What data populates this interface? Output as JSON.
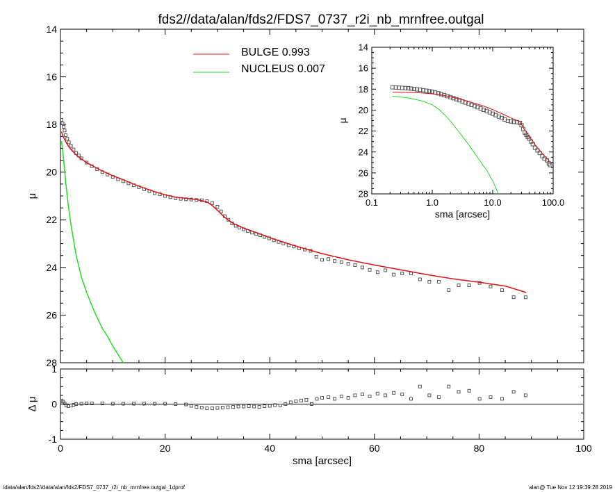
{
  "title": "fds2//data/alan/fds2/FDS7_0737_r2i_nb_mrnfree.outgal",
  "footer_left": "/data/alan/fds2//data/alan/fds2/FDS7_0737_r2i_nb_mrnfree.outgal_1dprof",
  "footer_right": "alan@  Tue Nov 12 19:39:28 2019",
  "legend": [
    {
      "label": "BULGE  0.993",
      "color": "#dd1111"
    },
    {
      "label": "NUCLEUS  0.007",
      "color": "#22dd22"
    }
  ],
  "chart_data": [
    {
      "type": "line",
      "panel": "main",
      "xlabel": "",
      "ylabel": "μ",
      "xlim": [
        0,
        100
      ],
      "ylim": [
        28,
        14
      ],
      "y_reversed": true,
      "x_ticks": [],
      "y_ticks": [
        14,
        16,
        18,
        20,
        22,
        24,
        26,
        28
      ],
      "series": [
        {
          "name": "data",
          "kind": "square-markers",
          "color": "#555555",
          "x": [
            0.2,
            0.4,
            0.6,
            0.8,
            1.0,
            1.3,
            1.6,
            2.0,
            2.5,
            3.0,
            3.5,
            4.0,
            5.0,
            6.0,
            7.0,
            8.0,
            9.0,
            10.0,
            11.0,
            12.0,
            13.0,
            14.0,
            15.0,
            16.0,
            17.0,
            18.0,
            19.0,
            20.0,
            21.0,
            22.0,
            23.0,
            24.0,
            25.0,
            26.0,
            27.0,
            28.0,
            29.0,
            30.0,
            30.7,
            31.4,
            32.1,
            32.8,
            33.5,
            34.2,
            35.0,
            35.8,
            36.6,
            37.4,
            38.2,
            39.0,
            39.9,
            40.8,
            41.7,
            42.6,
            43.6,
            44.6,
            45.6,
            46.7,
            47.8,
            48.9,
            50.0,
            51.2,
            52.4,
            53.7,
            55.0,
            56.3,
            57.7,
            59.1,
            60.6,
            62.1,
            63.7,
            65.3,
            67.0,
            68.7,
            70.5,
            72.3,
            74.2,
            76.1,
            78.1,
            80.1,
            82.2,
            84.4,
            86.6,
            88.9
          ],
          "y": [
            17.8,
            17.95,
            18.1,
            18.25,
            18.45,
            18.6,
            18.75,
            18.9,
            19.05,
            19.2,
            19.3,
            19.42,
            19.6,
            19.75,
            19.88,
            20.0,
            20.1,
            20.2,
            20.3,
            20.38,
            20.47,
            20.55,
            20.63,
            20.72,
            20.8,
            20.88,
            20.93,
            21.0,
            21.05,
            21.1,
            21.12,
            21.14,
            21.15,
            21.17,
            21.18,
            21.22,
            21.3,
            21.45,
            21.65,
            21.85,
            22.0,
            22.15,
            22.25,
            22.33,
            22.4,
            22.47,
            22.54,
            22.6,
            22.65,
            22.72,
            22.78,
            22.86,
            22.93,
            22.99,
            23.07,
            23.12,
            23.2,
            23.25,
            23.3,
            23.55,
            23.68,
            23.65,
            23.73,
            23.78,
            23.85,
            23.9,
            24.0,
            24.1,
            24.2,
            24.12,
            24.3,
            24.25,
            24.25,
            24.5,
            24.6,
            24.6,
            24.95,
            24.75,
            24.75,
            24.65,
            24.8,
            24.95,
            25.25,
            25.25
          ]
        },
        {
          "name": "BULGE",
          "kind": "line",
          "color": "#dd1111",
          "x": [
            0.2,
            0.5,
            1.0,
            1.5,
            2.0,
            3.0,
            4.0,
            5.0,
            6.0,
            8.0,
            10.0,
            12.0,
            14.0,
            16.0,
            18.0,
            20.0,
            22.0,
            24.0,
            26.0,
            28.0,
            29.0,
            30.0,
            31.0,
            32.0,
            33.0,
            35.0,
            37.0,
            40.0,
            43.0,
            46.0,
            50.0,
            55.0,
            60.0,
            65.0,
            70.0,
            75.0,
            80.0,
            85.0,
            89.0
          ],
          "y": [
            18.3,
            18.5,
            18.72,
            18.9,
            19.05,
            19.28,
            19.45,
            19.6,
            19.72,
            19.95,
            20.15,
            20.32,
            20.5,
            20.67,
            20.82,
            20.95,
            21.05,
            21.1,
            21.15,
            21.25,
            21.4,
            21.6,
            21.82,
            22.0,
            22.15,
            22.35,
            22.5,
            22.75,
            22.97,
            23.17,
            23.42,
            23.68,
            23.9,
            24.1,
            24.3,
            24.48,
            24.62,
            24.78,
            25.05
          ]
        },
        {
          "name": "NUCLEUS",
          "kind": "line",
          "color": "#22dd22",
          "x": [
            0.2,
            0.4,
            0.7,
            1.0,
            1.5,
            2.0,
            3.0,
            4.0,
            5.0,
            6.0,
            7.0,
            8.0,
            9.0,
            10.0,
            11.0,
            12.0,
            13.0
          ],
          "y": [
            18.7,
            19.05,
            19.7,
            20.4,
            21.4,
            22.2,
            23.5,
            24.4,
            25.05,
            25.6,
            26.1,
            26.55,
            26.9,
            27.3,
            27.65,
            28.0,
            28.3
          ]
        }
      ]
    },
    {
      "type": "scatter",
      "panel": "residual",
      "xlabel": "sma [arcsec]",
      "ylabel": "Δ μ",
      "xlim": [
        0,
        100
      ],
      "ylim": [
        -1,
        1
      ],
      "x_ticks": [
        0,
        20,
        40,
        60,
        80,
        100
      ],
      "y_ticks": [
        -1,
        0,
        1
      ],
      "series": [
        {
          "name": "residual",
          "color": "#555555",
          "x": [
            0.2,
            0.5,
            0.8,
            1.1,
            1.5,
            2.0,
            2.5,
            3.0,
            4.0,
            5.0,
            6.0,
            8.0,
            10.0,
            12.0,
            14.0,
            16.0,
            18.0,
            20.0,
            22.0,
            24.0,
            25.0,
            26.0,
            27.0,
            28.0,
            29.0,
            30.0,
            31.0,
            32.0,
            33.0,
            34.0,
            35.0,
            36.0,
            37.0,
            38.0,
            39.0,
            40.0,
            41.0,
            42.0,
            43.0,
            44.0,
            45.0,
            46.0,
            47.0,
            48.0,
            49.0,
            50.0,
            51.2,
            52.4,
            53.7,
            55.0,
            56.3,
            57.7,
            59.1,
            60.6,
            62.1,
            63.7,
            65.3,
            67.0,
            68.7,
            70.5,
            72.3,
            74.2,
            76.1,
            78.1,
            80.1,
            82.2,
            84.4,
            86.6,
            88.9
          ],
          "y": [
            0.1,
            0.07,
            0.02,
            -0.03,
            -0.06,
            -0.04,
            -0.02,
            0.0,
            0.01,
            0.02,
            0.02,
            0.02,
            0.01,
            0.01,
            0.01,
            0.01,
            0.01,
            0.01,
            0.0,
            -0.01,
            -0.05,
            -0.08,
            -0.1,
            -0.12,
            -0.12,
            -0.11,
            -0.1,
            -0.09,
            -0.08,
            -0.07,
            -0.07,
            -0.06,
            -0.07,
            -0.08,
            -0.06,
            -0.05,
            -0.03,
            -0.04,
            0.0,
            0.05,
            0.08,
            0.1,
            0.12,
            0.0,
            0.15,
            0.18,
            0.2,
            0.15,
            0.22,
            0.18,
            0.25,
            0.28,
            0.22,
            0.3,
            0.25,
            0.32,
            0.28,
            0.15,
            0.5,
            0.25,
            0.2,
            0.5,
            0.35,
            0.38,
            0.15,
            0.2,
            0.15,
            0.35,
            0.25
          ]
        }
      ]
    },
    {
      "type": "line",
      "panel": "inset",
      "xlabel": "sma [arcsec]",
      "ylabel": "μ",
      "x_scale": "log",
      "xlim": [
        0.1,
        100
      ],
      "ylim": [
        28,
        14
      ],
      "y_reversed": true,
      "x_ticks": [
        "0.1",
        "1.0",
        "10.0",
        "100.0"
      ],
      "y_ticks": [
        14,
        16,
        18,
        20,
        22,
        24,
        26,
        28
      ],
      "series": [
        {
          "name": "data",
          "kind": "square-markers",
          "color": "#555555",
          "x": [
            0.22,
            0.25,
            0.28,
            0.32,
            0.36,
            0.4,
            0.45,
            0.5,
            0.56,
            0.63,
            0.71,
            0.8,
            0.9,
            1.0,
            1.12,
            1.26,
            1.41,
            1.58,
            1.78,
            2.0,
            2.24,
            2.51,
            2.82,
            3.16,
            3.55,
            3.98,
            4.47,
            5.01,
            5.62,
            6.31,
            7.08,
            7.94,
            8.91,
            10.0,
            11.2,
            12.6,
            14.1,
            15.8,
            17.8,
            20.0,
            22.4,
            25.1,
            28.2,
            30.0,
            32.0,
            34.0,
            36.0,
            38.0,
            40.0,
            43.0,
            46.0,
            50.0,
            55.0,
            60.0,
            66.0,
            72.0,
            79.0,
            85.0,
            89.0
          ],
          "y": [
            17.82,
            17.84,
            17.86,
            17.88,
            17.9,
            17.92,
            17.95,
            17.98,
            18.02,
            18.06,
            18.1,
            18.15,
            18.2,
            18.26,
            18.32,
            18.4,
            18.48,
            18.57,
            18.66,
            18.76,
            18.86,
            18.96,
            19.06,
            19.17,
            19.28,
            19.39,
            19.5,
            19.62,
            19.73,
            19.85,
            19.97,
            20.09,
            20.22,
            20.35,
            20.48,
            20.62,
            20.76,
            20.9,
            21.03,
            21.08,
            21.12,
            21.15,
            21.22,
            21.45,
            21.8,
            22.15,
            22.35,
            22.55,
            22.72,
            23.0,
            23.25,
            23.6,
            23.85,
            24.1,
            24.4,
            24.65,
            24.8,
            25.1,
            25.25
          ]
        },
        {
          "name": "BULGE",
          "kind": "line",
          "color": "#dd1111",
          "x": [
            0.22,
            0.3,
            0.4,
            0.5,
            0.7,
            1.0,
            1.5,
            2.0,
            3.0,
            4.0,
            5.0,
            7.0,
            10.0,
            15.0,
            20.0,
            25.0,
            28.0,
            30.0,
            33.0,
            36.0,
            40.0,
            45.0,
            50.0,
            60.0,
            70.0,
            80.0,
            89.0
          ],
          "y": [
            18.3,
            18.3,
            18.31,
            18.33,
            18.37,
            18.45,
            18.58,
            18.72,
            18.98,
            19.18,
            19.35,
            19.6,
            19.95,
            20.4,
            20.75,
            20.98,
            21.1,
            21.35,
            21.8,
            22.1,
            22.5,
            22.9,
            23.3,
            23.85,
            24.3,
            24.65,
            25.0
          ]
        },
        {
          "name": "NUCLEUS",
          "kind": "line",
          "color": "#22dd22",
          "x": [
            0.22,
            0.3,
            0.4,
            0.5,
            0.7,
            1.0,
            1.3,
            1.6,
            2.0,
            2.5,
            3.0,
            4.0,
            5.0,
            6.0,
            7.0,
            8.0,
            9.0,
            10.0,
            11.0,
            12.0,
            13.0
          ],
          "y": [
            18.68,
            18.75,
            18.85,
            18.95,
            19.15,
            19.5,
            19.95,
            20.45,
            21.05,
            21.75,
            22.35,
            23.3,
            24.1,
            24.75,
            25.3,
            25.75,
            26.3,
            26.75,
            27.3,
            27.8,
            28.3
          ]
        }
      ]
    }
  ]
}
